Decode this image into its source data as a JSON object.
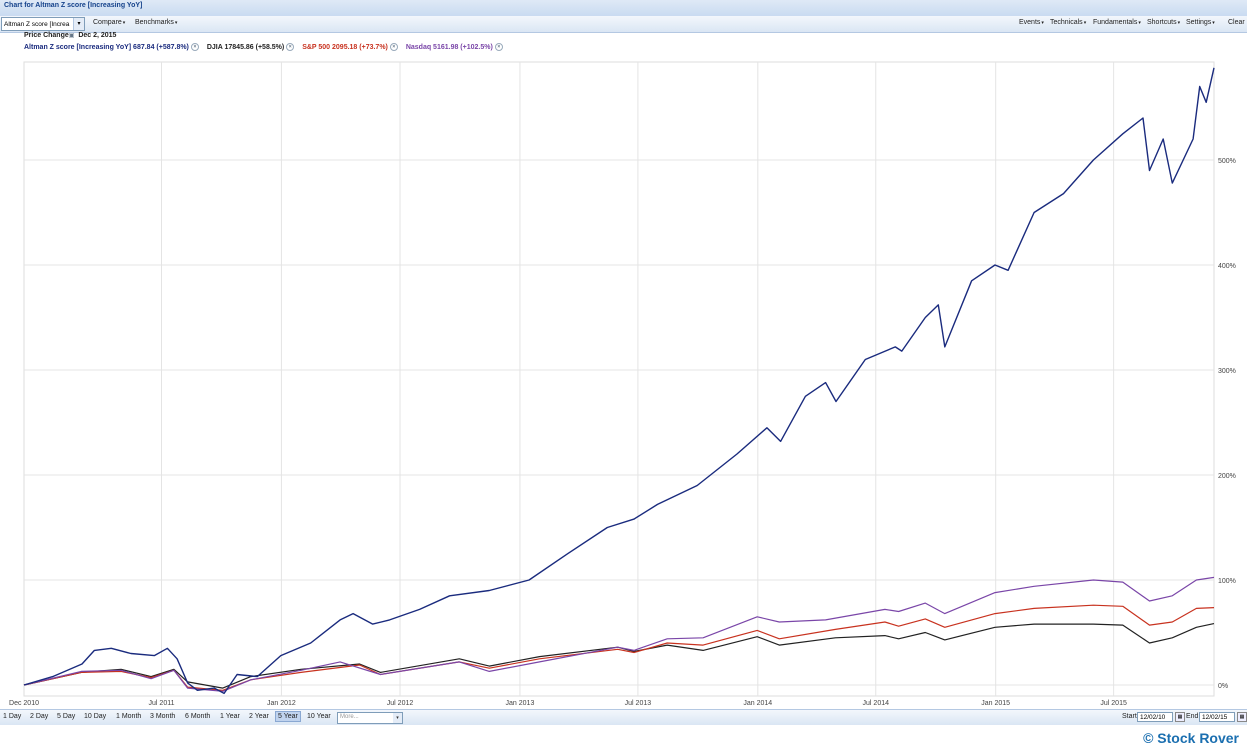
{
  "window": {
    "title": "Chart for Altman Z score [Increasing YoY]"
  },
  "toolbar": {
    "symbol_value": "Altman Z score [Increa",
    "left_menus": [
      {
        "label": "Compare"
      },
      {
        "label": "Benchmarks"
      }
    ],
    "right_menus": [
      {
        "label": "Events"
      },
      {
        "label": "Technicals"
      },
      {
        "label": "Fundamentals"
      },
      {
        "label": "Shortcuts"
      },
      {
        "label": "Settings"
      },
      {
        "label": "Clear"
      }
    ]
  },
  "header": {
    "price_change_label": "Price Change",
    "date": "Dec 2, 2015"
  },
  "legend": [
    {
      "text": "Altman Z score [Increasing YoY] 687.84 (+587.8%)",
      "color": "#1a2b7e"
    },
    {
      "text": "DJIA 17845.86 (+58.5%)",
      "color": "#222222"
    },
    {
      "text": "S&P 500 2095.18 (+73.7%)",
      "color": "#c8321f"
    },
    {
      "text": "Nasdaq 5161.98 (+102.5%)",
      "color": "#7a46a8"
    }
  ],
  "range_buttons": [
    "1 Day",
    "2 Day",
    "5 Day",
    "10 Day",
    "1 Month",
    "3 Month",
    "6 Month",
    "1 Year",
    "2 Year",
    "5 Year",
    "10 Year"
  ],
  "active_range": "5 Year",
  "more_placeholder": "More...",
  "start": {
    "label": "Start",
    "value": "12/02/10"
  },
  "end": {
    "label": "End",
    "value": "12/02/15"
  },
  "copyright": "© Stock Rover",
  "chart_data": {
    "type": "line",
    "x_labels": [
      "Dec 2010",
      "Jul 2011",
      "Jan 2012",
      "Jul 2012",
      "Jan 2013",
      "Jul 2013",
      "Jan 2014",
      "Jul 2014",
      "Jan 2015",
      "Jul 2015"
    ],
    "y_ticks": [
      "0%",
      "100%",
      "200%",
      "300%",
      "400%",
      "500%"
    ],
    "ylim": [
      -10,
      590
    ],
    "xlim": [
      "2010-12-02",
      "2015-12-02"
    ],
    "grid": true,
    "series": [
      {
        "name": "Altman Z score [Increasing YoY]",
        "color": "#1a2b7e",
        "points": [
          [
            "2010-12-02",
            0
          ],
          [
            "2011-01-15",
            8
          ],
          [
            "2011-03-01",
            20
          ],
          [
            "2011-03-20",
            33
          ],
          [
            "2011-04-15",
            35
          ],
          [
            "2011-05-15",
            30
          ],
          [
            "2011-06-20",
            28
          ],
          [
            "2011-07-10",
            35
          ],
          [
            "2011-07-25",
            25
          ],
          [
            "2011-08-10",
            2
          ],
          [
            "2011-08-25",
            -5
          ],
          [
            "2011-09-20",
            -3
          ],
          [
            "2011-10-05",
            -8
          ],
          [
            "2011-10-25",
            10
          ],
          [
            "2011-11-25",
            8
          ],
          [
            "2011-12-31",
            28
          ],
          [
            "2012-02-15",
            40
          ],
          [
            "2012-03-31",
            62
          ],
          [
            "2012-04-20",
            68
          ],
          [
            "2012-05-20",
            58
          ],
          [
            "2012-06-15",
            62
          ],
          [
            "2012-07-31",
            72
          ],
          [
            "2012-09-15",
            85
          ],
          [
            "2012-11-15",
            90
          ],
          [
            "2013-01-15",
            100
          ],
          [
            "2013-03-15",
            125
          ],
          [
            "2013-05-15",
            150
          ],
          [
            "2013-06-25",
            158
          ],
          [
            "2013-07-31",
            172
          ],
          [
            "2013-09-30",
            190
          ],
          [
            "2013-11-30",
            220
          ],
          [
            "2014-01-15",
            245
          ],
          [
            "2014-02-05",
            232
          ],
          [
            "2014-03-15",
            275
          ],
          [
            "2014-04-15",
            288
          ],
          [
            "2014-05-01",
            270
          ],
          [
            "2014-06-15",
            310
          ],
          [
            "2014-07-31",
            322
          ],
          [
            "2014-08-10",
            318
          ],
          [
            "2014-09-15",
            350
          ],
          [
            "2014-10-05",
            362
          ],
          [
            "2014-10-15",
            322
          ],
          [
            "2014-11-25",
            385
          ],
          [
            "2014-12-31",
            400
          ],
          [
            "2015-01-20",
            395
          ],
          [
            "2015-03-01",
            450
          ],
          [
            "2015-04-15",
            468
          ],
          [
            "2015-05-31",
            500
          ],
          [
            "2015-07-15",
            525
          ],
          [
            "2015-08-15",
            540
          ],
          [
            "2015-08-25",
            490
          ],
          [
            "2015-09-15",
            520
          ],
          [
            "2015-09-29",
            478
          ],
          [
            "2015-10-31",
            520
          ],
          [
            "2015-11-10",
            570
          ],
          [
            "2015-11-20",
            555
          ],
          [
            "2015-12-02",
            587.8
          ]
        ]
      },
      {
        "name": "DJIA",
        "color": "#222222",
        "points": [
          [
            "2010-12-02",
            0
          ],
          [
            "2011-02-28",
            12
          ],
          [
            "2011-04-30",
            15
          ],
          [
            "2011-06-15",
            8
          ],
          [
            "2011-07-20",
            15
          ],
          [
            "2011-08-10",
            3
          ],
          [
            "2011-10-03",
            -3
          ],
          [
            "2011-11-15",
            8
          ],
          [
            "2012-01-31",
            15
          ],
          [
            "2012-04-30",
            20
          ],
          [
            "2012-06-01",
            12
          ],
          [
            "2012-09-30",
            25
          ],
          [
            "2012-11-15",
            18
          ],
          [
            "2013-01-31",
            27
          ],
          [
            "2013-05-31",
            36
          ],
          [
            "2013-06-25",
            32
          ],
          [
            "2013-08-15",
            38
          ],
          [
            "2013-10-09",
            33
          ],
          [
            "2013-12-31",
            46
          ],
          [
            "2014-02-03",
            38
          ],
          [
            "2014-04-30",
            45
          ],
          [
            "2014-07-15",
            47
          ],
          [
            "2014-08-05",
            44
          ],
          [
            "2014-09-15",
            50
          ],
          [
            "2014-10-15",
            43
          ],
          [
            "2014-12-31",
            55
          ],
          [
            "2015-03-01",
            58
          ],
          [
            "2015-05-31",
            58
          ],
          [
            "2015-07-15",
            57
          ],
          [
            "2015-08-25",
            40
          ],
          [
            "2015-09-29",
            45
          ],
          [
            "2015-11-05",
            55
          ],
          [
            "2015-12-02",
            58.5
          ]
        ]
      },
      {
        "name": "S&P 500",
        "color": "#c8321f",
        "points": [
          [
            "2010-12-02",
            0
          ],
          [
            "2011-02-28",
            12
          ],
          [
            "2011-04-30",
            13
          ],
          [
            "2011-06-15",
            7
          ],
          [
            "2011-07-20",
            14
          ],
          [
            "2011-08-10",
            -2
          ],
          [
            "2011-10-03",
            -5
          ],
          [
            "2011-11-15",
            5
          ],
          [
            "2012-01-31",
            12
          ],
          [
            "2012-04-30",
            19
          ],
          [
            "2012-06-01",
            10
          ],
          [
            "2012-09-30",
            22
          ],
          [
            "2012-11-15",
            16
          ],
          [
            "2013-01-31",
            25
          ],
          [
            "2013-05-31",
            34
          ],
          [
            "2013-06-25",
            31
          ],
          [
            "2013-08-15",
            40
          ],
          [
            "2013-10-09",
            38
          ],
          [
            "2013-12-31",
            52
          ],
          [
            "2014-02-03",
            44
          ],
          [
            "2014-04-30",
            53
          ],
          [
            "2014-07-15",
            60
          ],
          [
            "2014-08-05",
            56
          ],
          [
            "2014-09-15",
            63
          ],
          [
            "2014-10-15",
            55
          ],
          [
            "2014-12-31",
            68
          ],
          [
            "2015-03-01",
            73
          ],
          [
            "2015-05-31",
            76
          ],
          [
            "2015-07-15",
            75
          ],
          [
            "2015-08-25",
            57
          ],
          [
            "2015-09-29",
            60
          ],
          [
            "2015-11-05",
            73
          ],
          [
            "2015-12-02",
            73.7
          ]
        ]
      },
      {
        "name": "Nasdaq",
        "color": "#7a46a8",
        "points": [
          [
            "2010-12-02",
            0
          ],
          [
            "2011-02-28",
            13
          ],
          [
            "2011-04-30",
            14
          ],
          [
            "2011-06-15",
            6
          ],
          [
            "2011-07-20",
            14
          ],
          [
            "2011-08-10",
            -3
          ],
          [
            "2011-10-03",
            -6
          ],
          [
            "2011-11-15",
            5
          ],
          [
            "2012-01-31",
            14
          ],
          [
            "2012-03-31",
            22
          ],
          [
            "2012-06-01",
            10
          ],
          [
            "2012-09-30",
            22
          ],
          [
            "2012-11-15",
            13
          ],
          [
            "2013-01-31",
            22
          ],
          [
            "2013-05-31",
            36
          ],
          [
            "2013-06-25",
            33
          ],
          [
            "2013-08-15",
            44
          ],
          [
            "2013-10-09",
            45
          ],
          [
            "2013-12-31",
            65
          ],
          [
            "2014-02-03",
            60
          ],
          [
            "2014-04-15",
            62
          ],
          [
            "2014-07-15",
            72
          ],
          [
            "2014-08-05",
            70
          ],
          [
            "2014-09-15",
            78
          ],
          [
            "2014-10-15",
            68
          ],
          [
            "2014-12-31",
            88
          ],
          [
            "2015-03-01",
            94
          ],
          [
            "2015-05-31",
            100
          ],
          [
            "2015-07-15",
            98
          ],
          [
            "2015-08-25",
            80
          ],
          [
            "2015-09-29",
            85
          ],
          [
            "2015-11-05",
            100
          ],
          [
            "2015-12-02",
            102.5
          ]
        ]
      }
    ]
  }
}
